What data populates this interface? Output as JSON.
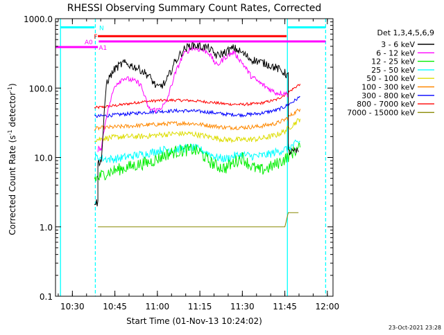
{
  "chart_data": {
    "type": "line",
    "title": "RHESSI Observing Summary Count Rates, Corrected",
    "xlabel": "Start Time (01-Nov-13 10:24:02)",
    "ylabel": "Corrected Count Rate (s⁻¹ detector⁻¹)",
    "ylabel_parts": [
      "Corrected Count Rate (s",
      "-1",
      " detector",
      "-1",
      ")"
    ],
    "yscale": "log",
    "ylim": [
      0.1,
      1000
    ],
    "xlim": [
      10.4006,
      12.0333
    ],
    "yticks": [
      0.1,
      1,
      10,
      100,
      1000
    ],
    "ytick_labels": [
      "0.1",
      "1.0",
      "10.0",
      "100.0",
      "1000.0"
    ],
    "xticks": [
      10.5,
      10.75,
      11.0,
      11.25,
      11.5,
      11.75,
      12.0
    ],
    "xtick_labels": [
      "10:30",
      "10:45",
      "11:00",
      "11:15",
      "11:30",
      "11:45",
      "12:00"
    ],
    "legend_title": "Det 1,3,4,5,6,9",
    "legend_placement": "right",
    "timestamp": "23-Oct-2021 23:28",
    "series": [
      {
        "name": "3 - 6 keV",
        "color": "#000000",
        "noise": 0.06,
        "x": [
          10.63,
          10.65,
          10.65,
          10.67,
          10.7,
          10.75,
          10.8,
          10.85,
          10.9,
          10.95,
          11.0,
          11.05,
          11.1,
          11.15,
          11.2,
          11.25,
          11.3,
          11.35,
          11.4,
          11.45,
          11.5,
          11.55,
          11.6,
          11.65,
          11.7,
          11.75,
          11.77,
          11.77,
          11.8,
          11.83
        ],
        "y": [
          2.3,
          2.2,
          8.5,
          9.0,
          120,
          190,
          230,
          210,
          185,
          150,
          100,
          120,
          230,
          350,
          420,
          400,
          380,
          290,
          330,
          380,
          320,
          260,
          240,
          220,
          195,
          165,
          150,
          12,
          12,
          12
        ]
      },
      {
        "name": "6 - 12 keV",
        "color": "#ff00ff",
        "noise": 0.04,
        "x": [
          10.65,
          10.67,
          10.7,
          10.75,
          10.8,
          10.85,
          10.9,
          10.95,
          11.0,
          11.05,
          11.1,
          11.15,
          11.2,
          11.25,
          11.3,
          11.35,
          11.4,
          11.45,
          11.5,
          11.55,
          11.6,
          11.65,
          11.7,
          11.75,
          11.77
        ],
        "y": [
          13,
          14,
          40,
          110,
          140,
          130,
          115,
          50,
          48,
          60,
          150,
          300,
          380,
          360,
          330,
          210,
          280,
          330,
          230,
          150,
          120,
          100,
          85,
          85,
          80
        ]
      },
      {
        "name": "12 - 25 keV",
        "color": "#00ee00",
        "noise": 0.09,
        "x": [
          10.63,
          10.65,
          10.67,
          10.7,
          10.75,
          10.8,
          10.85,
          10.9,
          10.95,
          11.0,
          11.05,
          11.1,
          11.15,
          11.2,
          11.25,
          11.3,
          11.35,
          11.4,
          11.45,
          11.5,
          11.55,
          11.6,
          11.65,
          11.7,
          11.75,
          11.8,
          11.84
        ],
        "y": [
          5.0,
          5.0,
          5.5,
          6.0,
          6.5,
          7.0,
          7.5,
          8.0,
          8.5,
          9.5,
          11,
          12,
          12.5,
          13,
          12,
          9,
          7.5,
          7,
          8.5,
          10,
          7.5,
          6.5,
          7,
          8,
          9.5,
          12,
          14
        ]
      },
      {
        "name": "25 - 50 keV",
        "color": "#00ffff",
        "noise": 0.06,
        "x": [
          10.63,
          10.65,
          10.7,
          10.75,
          10.8,
          10.85,
          10.9,
          10.95,
          11.0,
          11.05,
          11.1,
          11.15,
          11.2,
          11.25,
          11.3,
          11.35,
          11.4,
          11.45,
          11.5,
          11.55,
          11.6,
          11.65,
          11.7,
          11.75,
          11.8,
          11.84
        ],
        "y": [
          10,
          10,
          9.5,
          9.5,
          10,
          10.5,
          11,
          11.5,
          12.5,
          13,
          13,
          13.5,
          14,
          13,
          11.5,
          10,
          9.5,
          10.5,
          11,
          10.5,
          10.5,
          11,
          12,
          13,
          15,
          17
        ]
      },
      {
        "name": "50 - 100 keV",
        "color": "#dddd00",
        "noise": 0.04,
        "x": [
          10.63,
          10.7,
          10.8,
          10.9,
          11.0,
          11.1,
          11.2,
          11.3,
          11.4,
          11.5,
          11.6,
          11.7,
          11.75,
          11.8,
          11.84
        ],
        "y": [
          18,
          19,
          20,
          20,
          21,
          22,
          22,
          20,
          18,
          18,
          18.5,
          21,
          24,
          30,
          36
        ]
      },
      {
        "name": "100 - 300 keV",
        "color": "#ff8800",
        "noise": 0.03,
        "x": [
          10.63,
          10.7,
          10.8,
          10.9,
          11.0,
          11.1,
          11.2,
          11.3,
          11.4,
          11.5,
          11.6,
          11.7,
          11.75,
          11.8,
          11.84
        ],
        "y": [
          26,
          27,
          28,
          29,
          30,
          31,
          31,
          29,
          27,
          27,
          28,
          31,
          35,
          43,
          50
        ]
      },
      {
        "name": "300 - 800 keV",
        "color": "#0000ff",
        "noise": 0.025,
        "x": [
          10.63,
          10.7,
          10.8,
          10.9,
          11.0,
          11.1,
          11.2,
          11.3,
          11.4,
          11.5,
          11.6,
          11.7,
          11.75,
          11.8,
          11.84
        ],
        "y": [
          39,
          40,
          42,
          44,
          46,
          47,
          47,
          45,
          42,
          41,
          43,
          48,
          54,
          64,
          75
        ]
      },
      {
        "name": "800 - 7000 keV",
        "color": "#ff0000",
        "noise": 0.02,
        "x": [
          10.63,
          10.7,
          10.8,
          10.9,
          11.0,
          11.1,
          11.2,
          11.3,
          11.4,
          11.5,
          11.6,
          11.7,
          11.75,
          11.8,
          11.84
        ],
        "y": [
          52,
          54,
          58,
          63,
          66,
          67,
          66,
          63,
          59,
          58,
          60,
          68,
          80,
          98,
          115
        ]
      },
      {
        "name": "7000 - 15000 keV",
        "color": "#888800",
        "noise": 0.0,
        "x": [
          10.65,
          10.7,
          10.75,
          10.8,
          10.85,
          10.9,
          10.95,
          11.0,
          11.05,
          11.1,
          11.15,
          11.2,
          11.25,
          11.3,
          11.35,
          11.4,
          11.45,
          11.5,
          11.55,
          11.6,
          11.65,
          11.7,
          11.75,
          11.77,
          11.8,
          11.83
        ],
        "y": [
          1.0,
          1.0,
          1.0,
          1.0,
          1.0,
          1.0,
          1.0,
          1.0,
          1.0,
          1.0,
          1.0,
          1.0,
          1.0,
          1.0,
          1.0,
          1.0,
          1.0,
          1.0,
          1.0,
          1.0,
          1.0,
          1.0,
          1.0,
          1.6,
          1.6,
          1.6
        ]
      }
    ],
    "flag_bars": [
      {
        "label": "N",
        "color": "#00ffff",
        "y": 750,
        "x_ranges": [
          [
            10.43,
            10.63
          ],
          [
            11.765,
            11.99
          ]
        ]
      },
      {
        "label": "F",
        "color": "#ff0000",
        "y": 560,
        "x_ranges": [
          [
            10.65,
            11.76
          ]
        ]
      },
      {
        "label": "A0",
        "color": "#ff00ff",
        "y": 470,
        "x_ranges": [
          [
            10.655,
            11.99
          ]
        ]
      },
      {
        "label": "A1",
        "color": "#ff00ff",
        "y": 390,
        "x_ranges": [
          [
            10.4,
            10.65
          ]
        ]
      }
    ],
    "vertical_markers": [
      {
        "x": 10.43,
        "color": "#00ffff",
        "style": "solid"
      },
      {
        "x": 10.635,
        "color": "#00ffff",
        "style": "dashed"
      },
      {
        "x": 11.765,
        "color": "#00ffff",
        "style": "solid"
      },
      {
        "x": 11.99,
        "color": "#00ffff",
        "style": "dashed"
      }
    ]
  }
}
